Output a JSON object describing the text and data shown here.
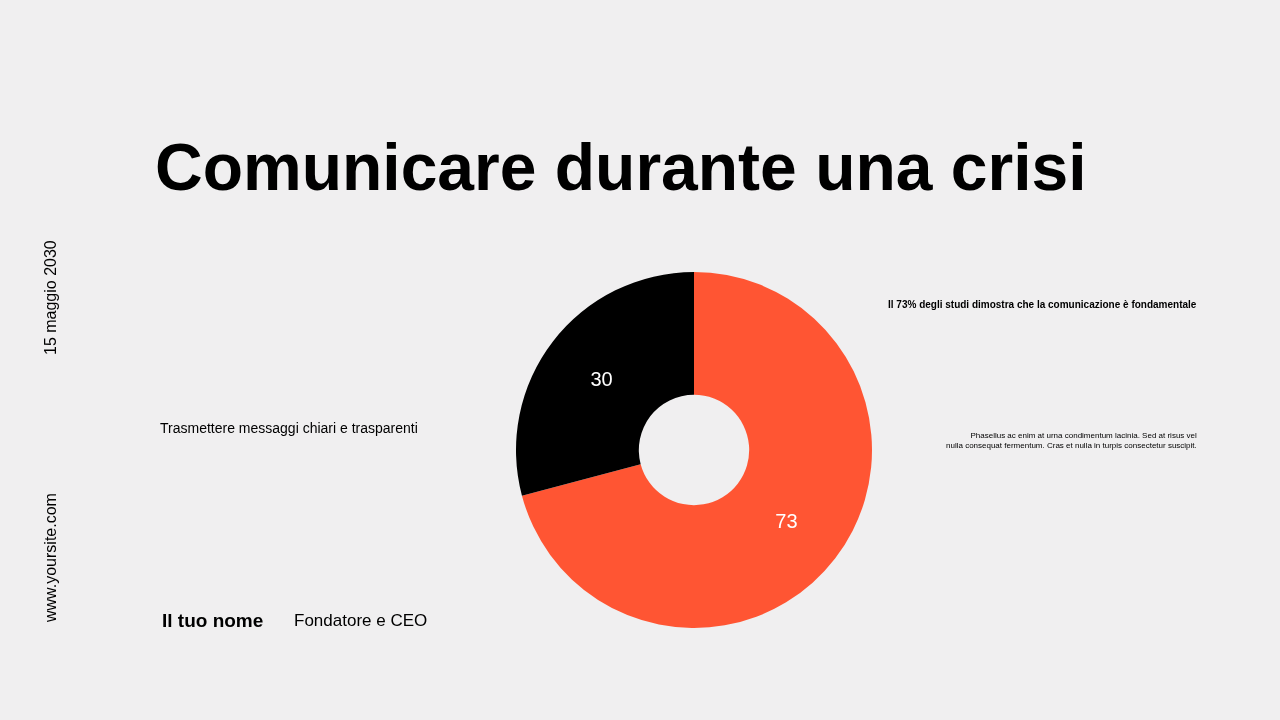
{
  "chart_data": {
    "type": "donut",
    "title": "Comunicare durante una crisi",
    "categories": [
      null,
      null
    ],
    "values": [
      73,
      30
    ],
    "colors": [
      "#ff5533",
      "#000000"
    ],
    "data_labels": true,
    "legend": false,
    "annotations": [
      "15 maggio 2030",
      "www.yoursite.com",
      "Trasmettere messaggi chiari e trasparenti",
      "Il 73% degli studi dimostra che la comunicazione è fondamentale",
      "Phasellus ac enim at urna condimentum lacinia. Sed at risus vel nulla consequat fermentum. Cras et nulla in turpis consectetur suscipit.",
      "Il tuo nome",
      "Fondatore e CEO"
    ]
  }
}
